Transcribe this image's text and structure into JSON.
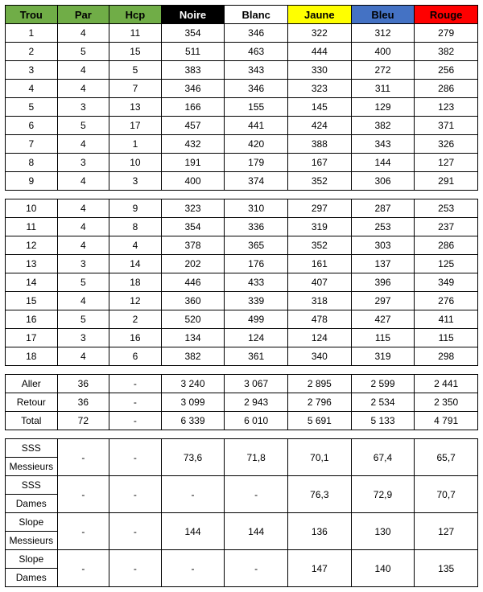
{
  "header": {
    "columns": [
      "Trou",
      "Par",
      "Hcp",
      "Noire",
      "Blanc",
      "Jaune",
      "Bleu",
      "Rouge"
    ],
    "colors": {
      "trou_bg": "#70ad47",
      "trou_fg": "#000000",
      "par_bg": "#70ad47",
      "par_fg": "#000000",
      "hcp_bg": "#70ad47",
      "hcp_fg": "#000000",
      "noire_bg": "#000000",
      "noire_fg": "#ffffff",
      "blanc_bg": "#ffffff",
      "blanc_fg": "#000000",
      "jaune_bg": "#ffff00",
      "jaune_fg": "#000000",
      "bleu_bg": "#4472c4",
      "bleu_fg": "#000000",
      "rouge_bg": "#ff0000",
      "rouge_fg": "#000000"
    }
  },
  "front9": [
    {
      "trou": "1",
      "par": "4",
      "hcp": "11",
      "noire": "354",
      "blanc": "346",
      "jaune": "322",
      "bleu": "312",
      "rouge": "279"
    },
    {
      "trou": "2",
      "par": "5",
      "hcp": "15",
      "noire": "511",
      "blanc": "463",
      "jaune": "444",
      "bleu": "400",
      "rouge": "382"
    },
    {
      "trou": "3",
      "par": "4",
      "hcp": "5",
      "noire": "383",
      "blanc": "343",
      "jaune": "330",
      "bleu": "272",
      "rouge": "256"
    },
    {
      "trou": "4",
      "par": "4",
      "hcp": "7",
      "noire": "346",
      "blanc": "346",
      "jaune": "323",
      "bleu": "311",
      "rouge": "286"
    },
    {
      "trou": "5",
      "par": "3",
      "hcp": "13",
      "noire": "166",
      "blanc": "155",
      "jaune": "145",
      "bleu": "129",
      "rouge": "123"
    },
    {
      "trou": "6",
      "par": "5",
      "hcp": "17",
      "noire": "457",
      "blanc": "441",
      "jaune": "424",
      "bleu": "382",
      "rouge": "371"
    },
    {
      "trou": "7",
      "par": "4",
      "hcp": "1",
      "noire": "432",
      "blanc": "420",
      "jaune": "388",
      "bleu": "343",
      "rouge": "326"
    },
    {
      "trou": "8",
      "par": "3",
      "hcp": "10",
      "noire": "191",
      "blanc": "179",
      "jaune": "167",
      "bleu": "144",
      "rouge": "127"
    },
    {
      "trou": "9",
      "par": "4",
      "hcp": "3",
      "noire": "400",
      "blanc": "374",
      "jaune": "352",
      "bleu": "306",
      "rouge": "291"
    }
  ],
  "back9": [
    {
      "trou": "10",
      "par": "4",
      "hcp": "9",
      "noire": "323",
      "blanc": "310",
      "jaune": "297",
      "bleu": "287",
      "rouge": "253"
    },
    {
      "trou": "11",
      "par": "4",
      "hcp": "8",
      "noire": "354",
      "blanc": "336",
      "jaune": "319",
      "bleu": "253",
      "rouge": "237"
    },
    {
      "trou": "12",
      "par": "4",
      "hcp": "4",
      "noire": "378",
      "blanc": "365",
      "jaune": "352",
      "bleu": "303",
      "rouge": "286"
    },
    {
      "trou": "13",
      "par": "3",
      "hcp": "14",
      "noire": "202",
      "blanc": "176",
      "jaune": "161",
      "bleu": "137",
      "rouge": "125"
    },
    {
      "trou": "14",
      "par": "5",
      "hcp": "18",
      "noire": "446",
      "blanc": "433",
      "jaune": "407",
      "bleu": "396",
      "rouge": "349"
    },
    {
      "trou": "15",
      "par": "4",
      "hcp": "12",
      "noire": "360",
      "blanc": "339",
      "jaune": "318",
      "bleu": "297",
      "rouge": "276"
    },
    {
      "trou": "16",
      "par": "5",
      "hcp": "2",
      "noire": "520",
      "blanc": "499",
      "jaune": "478",
      "bleu": "427",
      "rouge": "411"
    },
    {
      "trou": "17",
      "par": "3",
      "hcp": "16",
      "noire": "134",
      "blanc": "124",
      "jaune": "124",
      "bleu": "115",
      "rouge": "115"
    },
    {
      "trou": "18",
      "par": "4",
      "hcp": "6",
      "noire": "382",
      "blanc": "361",
      "jaune": "340",
      "bleu": "319",
      "rouge": "298"
    }
  ],
  "totals": [
    {
      "label": "Aller",
      "par": "36",
      "hcp": "-",
      "noire": "3 240",
      "blanc": "3 067",
      "jaune": "2 895",
      "bleu": "2 599",
      "rouge": "2 441"
    },
    {
      "label": "Retour",
      "par": "36",
      "hcp": "-",
      "noire": "3 099",
      "blanc": "2 943",
      "jaune": "2 796",
      "bleu": "2 534",
      "rouge": "2 350"
    },
    {
      "label": "Total",
      "par": "72",
      "hcp": "-",
      "noire": "6 339",
      "blanc": "6 010",
      "jaune": "5 691",
      "bleu": "5 133",
      "rouge": "4 791"
    }
  ],
  "ratings": [
    {
      "label1": "SSS",
      "label2": "Messieurs",
      "par": "-",
      "hcp": "-",
      "noire": "73,6",
      "blanc": "71,8",
      "jaune": "70,1",
      "bleu": "67,4",
      "rouge": "65,7"
    },
    {
      "label1": "SSS",
      "label2": "Dames",
      "par": "-",
      "hcp": "-",
      "noire": "-",
      "blanc": "-",
      "jaune": "76,3",
      "bleu": "72,9",
      "rouge": "70,7"
    },
    {
      "label1": "Slope",
      "label2": "Messieurs",
      "par": "-",
      "hcp": "-",
      "noire": "144",
      "blanc": "144",
      "jaune": "136",
      "bleu": "130",
      "rouge": "127"
    },
    {
      "label1": "Slope",
      "label2": "Dames",
      "par": "-",
      "hcp": "-",
      "noire": "-",
      "blanc": "-",
      "jaune": "147",
      "bleu": "140",
      "rouge": "135"
    }
  ]
}
